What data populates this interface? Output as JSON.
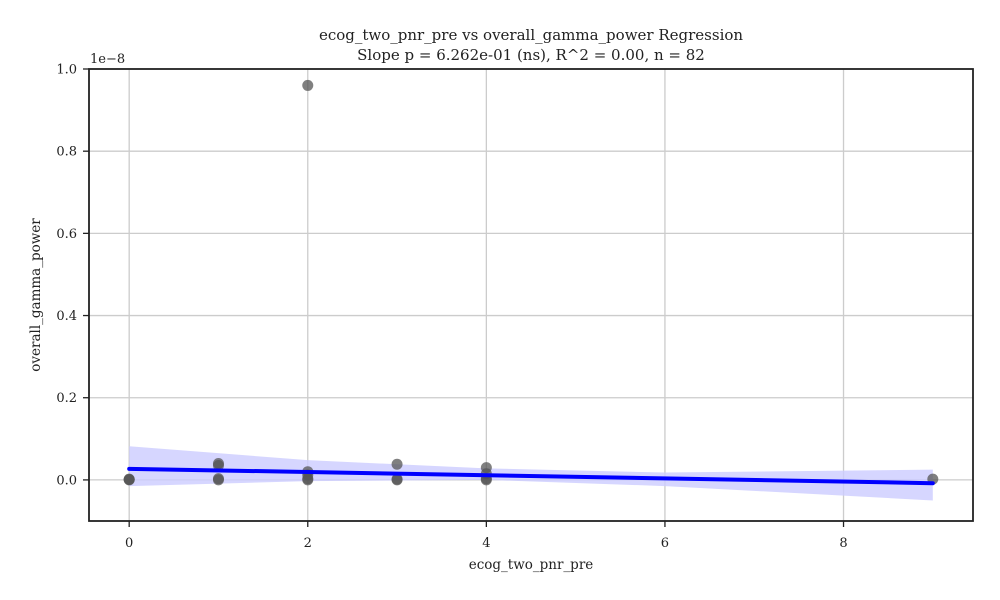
{
  "chart_data": {
    "type": "scatter",
    "title": "ecog_two_pnr_pre vs overall_gamma_power Regression",
    "subtitle": "Slope p = 6.262e-01 (ns), R^2 = 0.00, n = 82",
    "xlabel": "ecog_two_pnr_pre",
    "ylabel": "overall_gamma_power",
    "y_offset_label": "1e−8",
    "y_scale_factor": 1e-08,
    "xlim": [
      -0.45,
      9.45
    ],
    "ylim": [
      -0.1,
      1.0
    ],
    "x_ticks": [
      0,
      2,
      4,
      6,
      8
    ],
    "x_tick_labels": [
      "0",
      "2",
      "4",
      "6",
      "8"
    ],
    "y_ticks": [
      0.0,
      0.2,
      0.4,
      0.6,
      0.8,
      1.0
    ],
    "y_tick_labels": [
      "0.0",
      "0.2",
      "0.4",
      "0.6",
      "0.8",
      "1.0"
    ],
    "grid": true,
    "colors": {
      "points": "#555555",
      "regression_line": "#0000ff",
      "confidence_band": "#ccccff"
    },
    "points": [
      {
        "x": 0,
        "y": 0.0
      },
      {
        "x": 0,
        "y": 0.002
      },
      {
        "x": 0,
        "y": 0.001
      },
      {
        "x": 1,
        "y": 0.04
      },
      {
        "x": 1,
        "y": 0.035
      },
      {
        "x": 1,
        "y": 0.0
      },
      {
        "x": 1,
        "y": 0.003
      },
      {
        "x": 2,
        "y": 0.96
      },
      {
        "x": 2,
        "y": 0.02
      },
      {
        "x": 2,
        "y": 0.012
      },
      {
        "x": 2,
        "y": 0.0
      },
      {
        "x": 2,
        "y": 0.003
      },
      {
        "x": 3,
        "y": 0.038
      },
      {
        "x": 3,
        "y": 0.0
      },
      {
        "x": 3,
        "y": 0.002
      },
      {
        "x": 4,
        "y": 0.03
      },
      {
        "x": 4,
        "y": 0.015
      },
      {
        "x": 4,
        "y": 0.0
      },
      {
        "x": 4,
        "y": 0.003
      },
      {
        "x": 9,
        "y": 0.002
      }
    ],
    "regression_line": {
      "x": [
        0,
        9
      ],
      "y": [
        0.027,
        -0.008
      ]
    },
    "confidence_band": {
      "x": [
        0,
        2,
        4,
        6,
        9
      ],
      "lower": [
        -0.015,
        -0.003,
        0.0,
        -0.015,
        -0.05
      ],
      "upper": [
        0.082,
        0.048,
        0.028,
        0.018,
        0.025
      ]
    }
  }
}
